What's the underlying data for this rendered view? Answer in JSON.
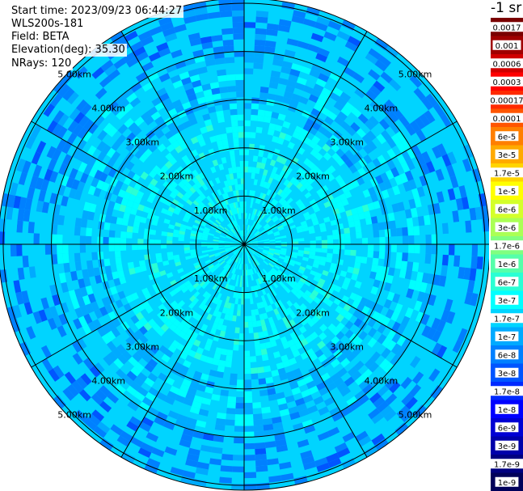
{
  "info": {
    "start_time": "Start time: 2023/09/23 06:44:27",
    "instrument": "WLS200s-181",
    "field": "Field: BETA",
    "elevation": "Elevation(deg): 35.30",
    "nrays": "NRays: 120"
  },
  "chart_data": {
    "type": "heatmap",
    "subtype": "polar-ppi",
    "field": "BETA",
    "unit": "-1 sr",
    "range_rings_km": [
      1,
      2,
      3,
      4,
      5
    ],
    "ring_label_texts": [
      "1.00km",
      "2.00km",
      "3.00km",
      "4.00km",
      "5.00km"
    ],
    "max_range_km": 5.1,
    "n_rays": 120,
    "spoke_angles_deg": [
      0,
      30,
      60,
      90,
      120,
      150
    ],
    "colorbar": {
      "labels": [
        "0.0017",
        "0.001",
        "0.0006",
        "0.0003",
        "0.00017",
        "0.0001",
        "6e-5",
        "3e-5",
        "1.7e-5",
        "1e-5",
        "6e-6",
        "3e-6",
        "1.7e-6",
        "1e-6",
        "6e-7",
        "3e-7",
        "1.7e-7",
        "1e-7",
        "6e-8",
        "3e-8",
        "1.7e-8",
        "1e-8",
        "6e-9",
        "3e-9",
        "1.7e-9",
        "1e-9"
      ],
      "colors": [
        "#7a0000",
        "#a00000",
        "#d00000",
        "#ff0000",
        "#ff2a00",
        "#ff5500",
        "#ff7f00",
        "#ffaa00",
        "#ffd400",
        "#ffff00",
        "#d4ff2a",
        "#aaff55",
        "#80ff80",
        "#55ffaa",
        "#2affd4",
        "#00ffff",
        "#00d4ff",
        "#00aaff",
        "#0080ff",
        "#0055ff",
        "#002aff",
        "#0000ff",
        "#0000d4",
        "#0000aa",
        "#000080",
        "#00005a"
      ]
    },
    "dominant_levels_by_range": [
      {
        "range_km": [
          0,
          0.5
        ],
        "value": "3e-7"
      },
      {
        "range_km": [
          0.5,
          2.6
        ],
        "value": "3e-7"
      },
      {
        "range_km": [
          2.6,
          4.0
        ],
        "value": "1.7e-7"
      },
      {
        "range_km": [
          4.0,
          5.1
        ],
        "value": "1e-7"
      }
    ]
  }
}
